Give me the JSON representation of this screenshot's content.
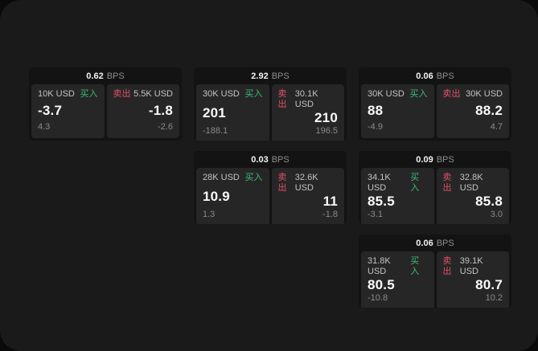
{
  "labels": {
    "bps": "BPS",
    "buy": "买入",
    "sell": "卖出"
  },
  "colors": {
    "buy": "#3ebd72",
    "sell": "#e25066",
    "outer_bg": "#0a0a0a",
    "surface_bg": "#1a1a1b",
    "card_bg": "#131314",
    "panel_bg": "#262627"
  },
  "cards": [
    {
      "bps": "0.62",
      "buy": {
        "size": "10K USD",
        "price": "-3.7",
        "delta": "4.3"
      },
      "sell": {
        "size": "5.5K USD",
        "price": "-1.8",
        "delta": "-2.6"
      }
    },
    {
      "bps": "2.92",
      "buy": {
        "size": "30K USD",
        "price": "201",
        "delta": "-188.1"
      },
      "sell": {
        "size": "30.1K USD",
        "price": "210",
        "delta": "196.5"
      }
    },
    {
      "bps": "0.06",
      "buy": {
        "size": "30K USD",
        "price": "88",
        "delta": "-4.9"
      },
      "sell": {
        "size": "30K USD",
        "price": "88.2",
        "delta": "4.7"
      }
    },
    {
      "bps": "0.03",
      "buy": {
        "size": "28K USD",
        "price": "10.9",
        "delta": "1.3"
      },
      "sell": {
        "size": "32.6K USD",
        "price": "11",
        "delta": "-1.8"
      }
    },
    {
      "bps": "0.09",
      "buy": {
        "size": "34.1K USD",
        "price": "85.5",
        "delta": "-3.1"
      },
      "sell": {
        "size": "32.8K USD",
        "price": "85.8",
        "delta": "3.0"
      }
    },
    {
      "bps": "0.06",
      "buy": {
        "size": "31.8K USD",
        "price": "80.5",
        "delta": "-10.8"
      },
      "sell": {
        "size": "39.1K USD",
        "price": "80.7",
        "delta": "10.2"
      }
    }
  ]
}
